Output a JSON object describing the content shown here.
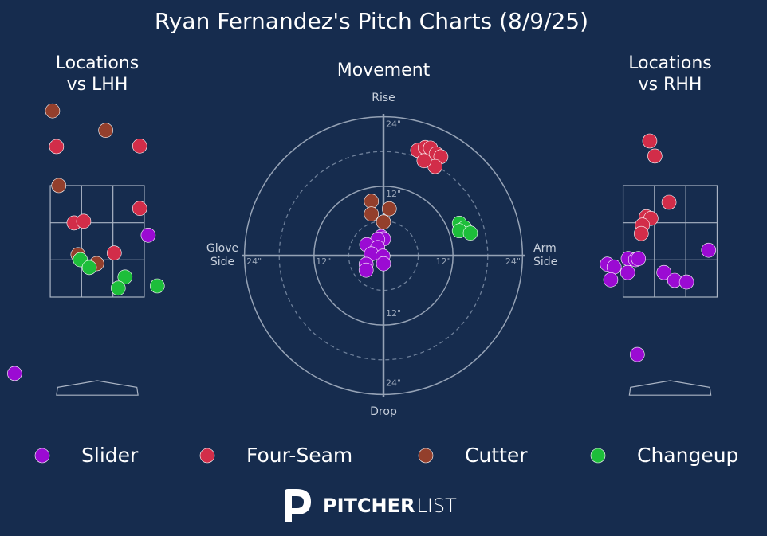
{
  "title": "Ryan Fernandez's Pitch Charts (8/9/25)",
  "chart_data": [
    {
      "type": "scatter",
      "title": [
        "Locations",
        "vs LHH"
      ],
      "xlim": [
        -1.6,
        1.6
      ],
      "ylim": [
        -0.5,
        5.0
      ],
      "series": [
        {
          "name": "Slider",
          "color": "#9b0bd3",
          "x": [
            -1.46,
            0.9
          ],
          "y": [
            0.13,
            2.61
          ]
        },
        {
          "name": "Four-Seam",
          "color": "#d22d49",
          "x": [
            -0.72,
            0.75,
            0.75,
            -0.41,
            -0.24,
            0.3
          ],
          "y": [
            4.2,
            4.21,
            3.09,
            2.83,
            2.86,
            2.29
          ]
        },
        {
          "name": "Cutter",
          "color": "#933f2c",
          "x": [
            -0.79,
            0.15,
            -0.68,
            -0.34,
            -0.01
          ],
          "y": [
            4.84,
            4.49,
            3.5,
            2.26,
            2.1
          ]
        },
        {
          "name": "Changeup",
          "color": "#1dbe3a",
          "x": [
            -0.3,
            -0.14,
            0.49,
            0.37,
            1.06
          ],
          "y": [
            2.17,
            2.03,
            1.86,
            1.66,
            1.7
          ]
        }
      ]
    },
    {
      "type": "polar-scatter",
      "title": "Movement",
      "rlim": [
        0,
        24.5
      ],
      "rticks": [
        {
          "value": 12,
          "label": "12\""
        },
        {
          "value": 24,
          "label": "24\""
        }
      ],
      "minor_rticks": [
        6,
        18
      ],
      "labels": {
        "top": [
          "Rise"
        ],
        "bottom": [
          "Drop"
        ],
        "left": [
          "Glove",
          "Side"
        ],
        "right": [
          "Arm",
          "Side"
        ]
      },
      "series": [
        {
          "name": "Slider",
          "color": "#9b0bd3",
          "x": [
            -0.4,
            0,
            -1.0,
            -2.9,
            -1.0,
            -2.1,
            -0.1,
            -3.0,
            0,
            -3.0
          ],
          "y": [
            3.3,
            2.9,
            2.8,
            1.9,
            1.4,
            0.3,
            -0.1,
            -1.5,
            -1.4,
            -2.5
          ]
        },
        {
          "name": "Four-Seam",
          "color": "#d22d49",
          "x": [
            5.9,
            7.2,
            8.1,
            9.1,
            9.9,
            8.9,
            7.0
          ],
          "y": [
            18.2,
            18.7,
            18.6,
            17.6,
            17.1,
            15.4,
            16.4
          ]
        },
        {
          "name": "Cutter",
          "color": "#933f2c",
          "x": [
            -2.1,
            1.0,
            -2.1,
            0
          ],
          "y": [
            9.4,
            8.1,
            7.2,
            5.8
          ]
        },
        {
          "name": "Changeup",
          "color": "#1dbe3a",
          "x": [
            13.1,
            14.0,
            13.1,
            15.0
          ],
          "y": [
            5.6,
            4.8,
            4.3,
            3.9
          ]
        }
      ]
    },
    {
      "type": "scatter",
      "title": [
        "Locations",
        "vs RHH"
      ],
      "xlim": [
        -1.6,
        1.6
      ],
      "ylim": [
        -0.5,
        5.0
      ],
      "series": [
        {
          "name": "Slider",
          "color": "#9b0bd3",
          "x": [
            0.68,
            -1.11,
            -0.99,
            -0.74,
            -0.61,
            -0.56,
            -0.75,
            -1.05,
            -0.11,
            0.08,
            0.29,
            -0.58
          ],
          "y": [
            2.34,
            2.09,
            2.04,
            2.19,
            2.17,
            2.19,
            1.94,
            1.81,
            1.94,
            1.8,
            1.77,
            0.47
          ]
        },
        {
          "name": "Four-Seam",
          "color": "#d22d49",
          "x": [
            -0.36,
            -0.27,
            -0.02,
            -0.42,
            -0.34,
            -0.49,
            -0.51
          ],
          "y": [
            4.3,
            4.03,
            3.2,
            2.94,
            2.91,
            2.79,
            2.64
          ]
        }
      ]
    }
  ],
  "footer": {
    "brand_bold": "PITCHER",
    "brand_light": "LIST"
  }
}
